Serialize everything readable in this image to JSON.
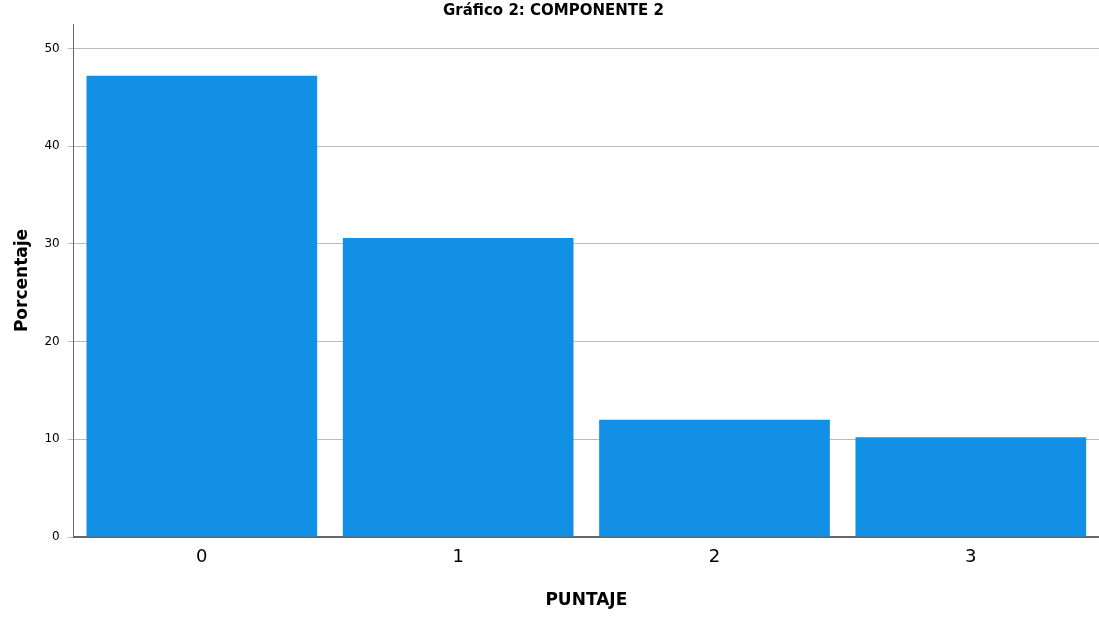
{
  "chart_data": {
    "type": "bar",
    "title": "Gráfico 2: COMPONENTE 2",
    "xlabel": "PUNTAJE",
    "ylabel": "Porcentaje",
    "categories": [
      "0",
      "1",
      "2",
      "3"
    ],
    "values": [
      47.2,
      30.6,
      12.0,
      10.2
    ],
    "color": "#1290e6",
    "ylim": [
      0,
      52.5
    ],
    "yticks": [
      0,
      10,
      20,
      30,
      40,
      50
    ],
    "grid": "y"
  }
}
